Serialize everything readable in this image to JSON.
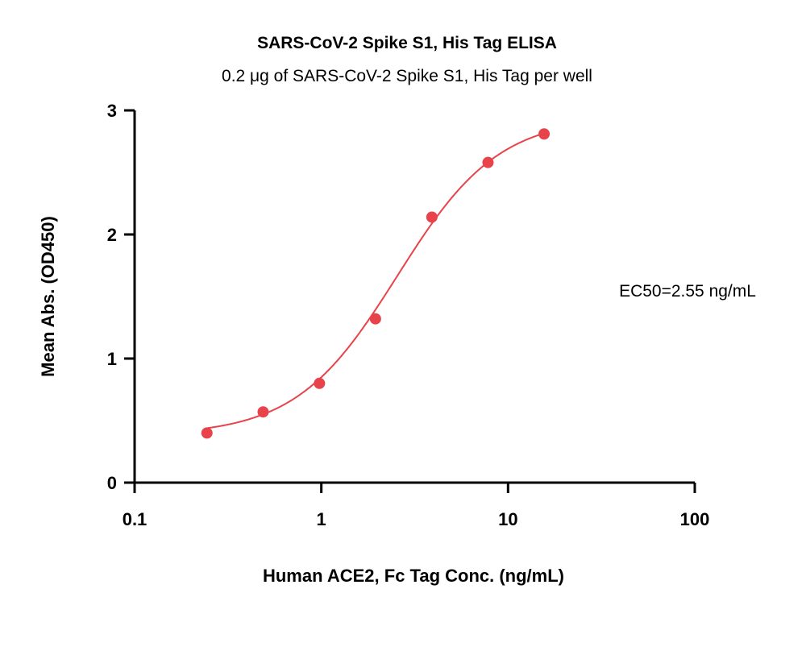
{
  "chart_data": {
    "type": "scatter",
    "title": "SARS-CoV-2 Spike S1, His Tag ELISA",
    "subtitle": "0.2 μg of SARS-CoV-2 Spike S1, His Tag per well",
    "xlabel": "Human ACE2, Fc Tag Conc. (ng/mL)",
    "ylabel": "Mean Abs. (OD450)",
    "x_scale": "log",
    "xlim": [
      0.1,
      100
    ],
    "ylim": [
      0,
      3
    ],
    "x_ticks": [
      0.1,
      1,
      10,
      100
    ],
    "x_tick_labels": [
      "0.1",
      "1",
      "10",
      "100"
    ],
    "y_ticks": [
      0,
      1,
      2,
      3
    ],
    "y_tick_labels": [
      "0",
      "1",
      "2",
      "3"
    ],
    "grid": false,
    "annotation": "EC50=2.55 ng/mL",
    "series": [
      {
        "x": [
          0.244,
          0.488,
          0.977,
          1.95,
          3.91,
          7.81,
          15.6
        ],
        "y": [
          0.4,
          0.57,
          0.8,
          1.32,
          2.14,
          2.58,
          2.81
        ],
        "color": "#e8434b",
        "marker": "circle"
      }
    ],
    "fit_curve": {
      "model": "4PL",
      "bottom": 0.38,
      "top": 2.95,
      "ec50": 2.55,
      "hill": 1.6,
      "x_range": [
        0.244,
        15.6
      ],
      "color": "#e8434b"
    }
  }
}
